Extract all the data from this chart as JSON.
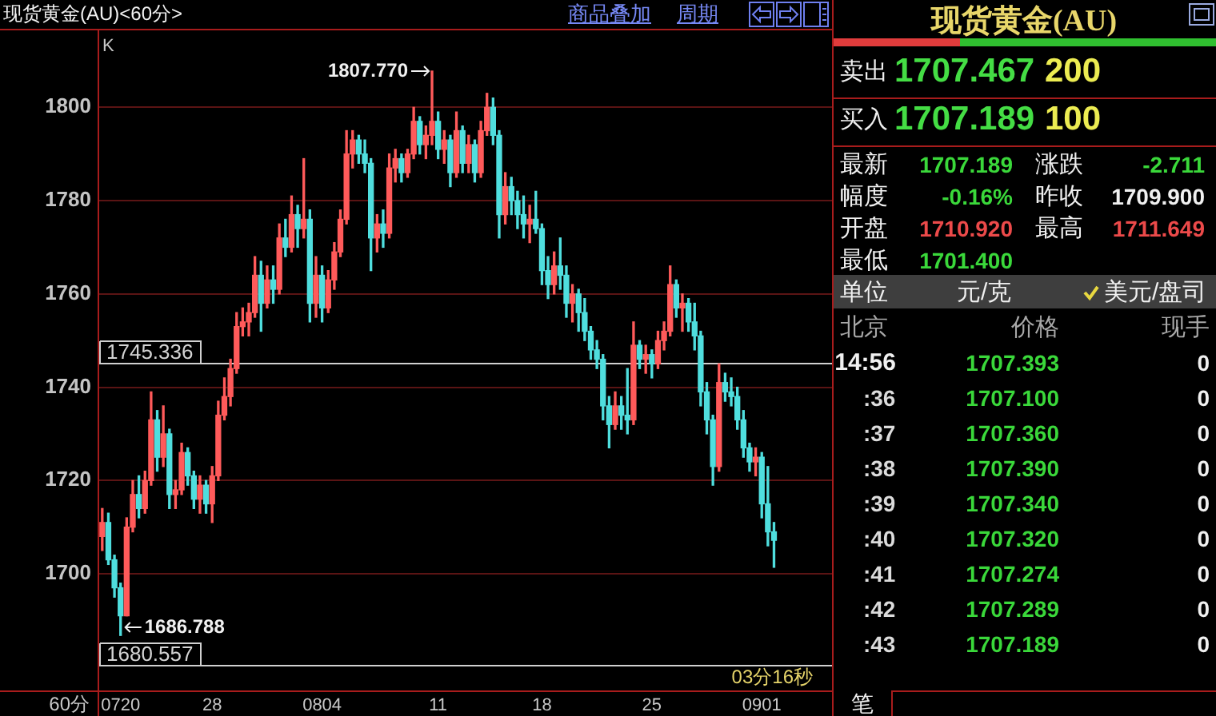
{
  "chart_data": [
    {
      "type": "candlestick",
      "title": "现货黄金(AU)<60分>",
      "xlabel": "60分",
      "categories": [
        null,
        null,
        null,
        "0720",
        null,
        null,
        null,
        null,
        null,
        null,
        null,
        null,
        null,
        null,
        null,
        null,
        null,
        null,
        "28",
        null,
        null,
        null,
        null,
        null,
        null,
        null,
        null,
        null,
        null,
        null,
        null,
        null,
        null,
        null,
        null,
        null,
        "0804",
        null,
        null,
        null,
        null,
        null,
        null,
        null,
        null,
        null,
        null,
        null,
        null,
        null,
        null,
        null,
        null,
        null,
        null,
        "11",
        null,
        null,
        null,
        null,
        null,
        null,
        null,
        null,
        null,
        null,
        null,
        null,
        null,
        null,
        null,
        null,
        "18",
        null,
        null,
        null,
        null,
        null,
        null,
        null,
        null,
        null,
        null,
        null,
        null,
        null,
        null,
        null,
        null,
        null,
        "25",
        null,
        null,
        null,
        null,
        null,
        null,
        null,
        null,
        null,
        null,
        null,
        null,
        null,
        null,
        null,
        null,
        null,
        "0901",
        null,
        null,
        null,
        null,
        null,
        null,
        null,
        null,
        null,
        null,
        null
      ],
      "ohlc": [
        [
          1708,
          1714,
          1705,
          1711
        ],
        [
          1711,
          1713,
          1702,
          1703
        ],
        [
          1703,
          1704,
          1695,
          1697
        ],
        [
          1697,
          1698,
          1686.788,
          1691
        ],
        [
          1691,
          1712,
          1691,
          1710
        ],
        [
          1710,
          1720,
          1709,
          1717
        ],
        [
          1717,
          1721,
          1712,
          1714
        ],
        [
          1714,
          1722,
          1713,
          1720
        ],
        [
          1720,
          1739,
          1719,
          1733
        ],
        [
          1733,
          1735,
          1722,
          1725
        ],
        [
          1725,
          1736,
          1723,
          1730
        ],
        [
          1730,
          1731,
          1714,
          1717
        ],
        [
          1717,
          1720,
          1714,
          1718
        ],
        [
          1718,
          1728,
          1717,
          1726
        ],
        [
          1726,
          1727,
          1719,
          1721
        ],
        [
          1721,
          1722,
          1714,
          1716
        ],
        [
          1716,
          1721,
          1713,
          1719
        ],
        [
          1719,
          1720,
          1713,
          1715
        ],
        [
          1715,
          1723,
          1711,
          1721
        ],
        [
          1721,
          1737,
          1720,
          1734
        ],
        [
          1734,
          1742,
          1733,
          1738
        ],
        [
          1738,
          1746,
          1736,
          1744
        ],
        [
          1744,
          1756,
          1743,
          1753
        ],
        [
          1753,
          1757,
          1751,
          1754
        ],
        [
          1754,
          1758,
          1751,
          1756
        ],
        [
          1756,
          1768,
          1755,
          1764
        ],
        [
          1764,
          1767,
          1752,
          1758
        ],
        [
          1758,
          1766,
          1757,
          1763
        ],
        [
          1763,
          1766,
          1758,
          1761
        ],
        [
          1761,
          1775,
          1760,
          1772
        ],
        [
          1772,
          1776,
          1768,
          1770
        ],
        [
          1770,
          1781,
          1769,
          1777
        ],
        [
          1777,
          1779,
          1770,
          1774
        ],
        [
          1774,
          1789,
          1772,
          1776
        ],
        [
          1776,
          1778,
          1754,
          1758
        ],
        [
          1758,
          1768,
          1755,
          1764
        ],
        [
          1764,
          1766,
          1754,
          1757
        ],
        [
          1757,
          1765,
          1756,
          1763
        ],
        [
          1763,
          1771,
          1761,
          1769
        ],
        [
          1769,
          1778,
          1768,
          1776
        ],
        [
          1776,
          1795,
          1775,
          1790
        ],
        [
          1790,
          1795,
          1787,
          1793
        ],
        [
          1793,
          1794,
          1788,
          1790
        ],
        [
          1790,
          1793,
          1786,
          1788
        ],
        [
          1788,
          1789,
          1765,
          1772
        ],
        [
          1772,
          1777,
          1769,
          1775
        ],
        [
          1775,
          1778,
          1770,
          1773
        ],
        [
          1773,
          1790,
          1772,
          1787
        ],
        [
          1787,
          1791,
          1784,
          1789
        ],
        [
          1789,
          1790,
          1784,
          1786
        ],
        [
          1786,
          1791,
          1785,
          1790
        ],
        [
          1790,
          1800,
          1789,
          1797
        ],
        [
          1797,
          1798,
          1790,
          1792
        ],
        [
          1792,
          1796,
          1789,
          1794
        ],
        [
          1794,
          1807.77,
          1792,
          1797
        ],
        [
          1797,
          1799,
          1789,
          1791
        ],
        [
          1791,
          1795,
          1788,
          1793
        ],
        [
          1793,
          1794,
          1783,
          1786
        ],
        [
          1786,
          1799,
          1785,
          1795
        ],
        [
          1795,
          1796,
          1786,
          1788
        ],
        [
          1788,
          1794,
          1786,
          1792
        ],
        [
          1792,
          1793,
          1784,
          1786
        ],
        [
          1786,
          1797,
          1785,
          1795
        ],
        [
          1795,
          1803,
          1794,
          1800
        ],
        [
          1800,
          1802,
          1792,
          1794
        ],
        [
          1794,
          1795,
          1772,
          1777
        ],
        [
          1777,
          1786,
          1775,
          1783
        ],
        [
          1783,
          1785,
          1777,
          1780
        ],
        [
          1780,
          1782,
          1774,
          1777
        ],
        [
          1777,
          1781,
          1772,
          1775
        ],
        [
          1775,
          1779,
          1771,
          1776
        ],
        [
          1776,
          1782,
          1773,
          1774
        ],
        [
          1774,
          1775,
          1762,
          1765
        ],
        [
          1765,
          1768,
          1759,
          1762
        ],
        [
          1762,
          1769,
          1760,
          1766
        ],
        [
          1766,
          1772,
          1761,
          1764
        ],
        [
          1764,
          1766,
          1755,
          1758
        ],
        [
          1758,
          1762,
          1754,
          1760
        ],
        [
          1760,
          1761,
          1752,
          1756
        ],
        [
          1756,
          1759,
          1750,
          1752
        ],
        [
          1752,
          1753,
          1746,
          1748
        ],
        [
          1748,
          1750,
          1744,
          1746
        ],
        [
          1746,
          1747,
          1733,
          1736
        ],
        [
          1736,
          1738,
          1727,
          1732
        ],
        [
          1732,
          1739,
          1731,
          1736
        ],
        [
          1736,
          1738,
          1731,
          1734
        ],
        [
          1734,
          1744,
          1730,
          1733
        ],
        [
          1733,
          1754,
          1732,
          1749
        ],
        [
          1749,
          1750,
          1744,
          1746
        ],
        [
          1746,
          1749,
          1743,
          1747
        ],
        [
          1747,
          1748,
          1742,
          1745
        ],
        [
          1745,
          1752,
          1744,
          1750
        ],
        [
          1750,
          1754,
          1748,
          1752
        ],
        [
          1752,
          1766,
          1751,
          1762
        ],
        [
          1762,
          1763,
          1755,
          1757
        ],
        [
          1757,
          1760,
          1752,
          1758
        ],
        [
          1758,
          1759,
          1752,
          1754
        ],
        [
          1754,
          1758,
          1748,
          1751
        ],
        [
          1751,
          1752,
          1736,
          1739
        ],
        [
          1739,
          1741,
          1730,
          1733
        ],
        [
          1733,
          1734,
          1719,
          1723
        ],
        [
          1723,
          1745,
          1722,
          1741
        ],
        [
          1741,
          1743,
          1737,
          1739
        ],
        [
          1739,
          1742,
          1736,
          1738
        ],
        [
          1738,
          1740,
          1731,
          1733
        ],
        [
          1733,
          1735,
          1725,
          1727
        ],
        [
          1727,
          1728,
          1722,
          1724
        ],
        [
          1724,
          1727,
          1721,
          1725
        ],
        [
          1725,
          1726,
          1712,
          1715
        ],
        [
          1715,
          1723,
          1706,
          1709
        ],
        [
          1709,
          1711,
          1701.4,
          1707.189
        ],
        null,
        null,
        null,
        null,
        null,
        null,
        null,
        null,
        null
      ],
      "colors": [
        "#ff5a5a",
        "#4fdede",
        "#4fdede",
        "#4fdede",
        "#ff5a5a",
        "#ff5a5a",
        "#4fdede",
        "#ff5a5a",
        "#ff5a5a",
        "#4fdede",
        "#ff5a5a",
        "#4fdede",
        "#ff5a5a",
        "#ff5a5a",
        "#4fdede",
        "#4fdede",
        "#ff5a5a",
        "#4fdede",
        "#ff5a5a",
        "#ff5a5a",
        "#ff5a5a",
        "#ff5a5a",
        "#ff5a5a",
        "#ff5a5a",
        "#ff5a5a",
        "#ff5a5a",
        "#4fdede",
        "#ff5a5a",
        "#4fdede",
        "#ff5a5a",
        "#4fdede",
        "#ff5a5a",
        "#4fdede",
        "#ff5a5a",
        "#4fdede",
        "#ff5a5a",
        "#4fdede",
        "#ff5a5a",
        "#ff5a5a",
        "#ff5a5a",
        "#ff5a5a",
        "#ff5a5a",
        "#4fdede",
        "#4fdede",
        "#4fdede",
        "#ff5a5a",
        "#4fdede",
        "#ff5a5a",
        "#ff5a5a",
        "#4fdede",
        "#ff5a5a",
        "#ff5a5a",
        "#4fdede",
        "#ff5a5a",
        "#ff5a5a",
        "#4fdede",
        "#ff5a5a",
        "#4fdede",
        "#ff5a5a",
        "#4fdede",
        "#ff5a5a",
        "#4fdede",
        "#ff5a5a",
        "#ff5a5a",
        "#4fdede",
        "#4fdede",
        "#ff5a5a",
        "#4fdede",
        "#4fdede",
        "#4fdede",
        "#ff5a5a",
        "#4fdede",
        "#4fdede",
        "#4fdede",
        "#ff5a5a",
        "#4fdede",
        "#4fdede",
        "#ff5a5a",
        "#4fdede",
        "#4fdede",
        "#4fdede",
        "#4fdede",
        "#4fdede",
        "#4fdede",
        "#ff5a5a",
        "#4fdede",
        "#4fdede",
        "#ff5a5a",
        "#4fdede",
        "#ff5a5a",
        "#4fdede",
        "#ff5a5a",
        "#ff5a5a",
        "#ff5a5a",
        "#4fdede",
        "#ff5a5a",
        "#4fdede",
        "#4fdede",
        "#4fdede",
        "#4fdede",
        "#4fdede",
        "#ff5a5a",
        "#4fdede",
        "#4fdede",
        "#4fdede",
        "#4fdede",
        "#4fdede",
        "#ff5a5a",
        "#4fdede",
        "#4fdede",
        "#4fdede",
        null,
        null,
        null,
        null,
        null,
        null,
        null,
        null,
        null
      ],
      "ylim": [
        1675,
        1816.5
      ],
      "yticks": [
        1700,
        1720,
        1740,
        1760,
        1780,
        1800
      ],
      "grid": "y",
      "ref_lines": [
        {
          "axis": "y",
          "value": 1745.336,
          "label": "1745.336",
          "color": "#d0d0d0"
        },
        {
          "axis": "y",
          "value": 1680.557,
          "label": "1680.557",
          "color": "#d0d0d0"
        }
      ],
      "annotations": [
        "K",
        "03分16秒",
        "商品叠加",
        "周期",
        "1807.770",
        "1686.788"
      ]
    },
    {
      "type": "other",
      "title": "现货黄金(AU)",
      "annotations": [
        "卖出",
        "1707.467",
        "200",
        "买入",
        "1707.189",
        "100",
        "最新",
        "1707.189",
        "涨跌",
        "-2.711",
        "幅度",
        "-0.16%",
        "昨收",
        "1709.900",
        "开盘",
        "1710.920",
        "最高",
        "1711.649",
        "最低",
        "1701.400",
        "单位",
        "元/克",
        "美元/盘司",
        "北京",
        "价格",
        "现手",
        "14:56",
        "1707.393",
        "0",
        ":36 1707.100",
        "0",
        ":37 1707.360",
        "0",
        ":38 1707.390",
        "0",
        ":39 1707.340",
        "0",
        ":40 1707.320",
        "0",
        ":41 1707.274",
        "0",
        ":42 1707.289",
        "0",
        ":43 1707.189",
        "0",
        "笔"
      ]
    }
  ]
}
